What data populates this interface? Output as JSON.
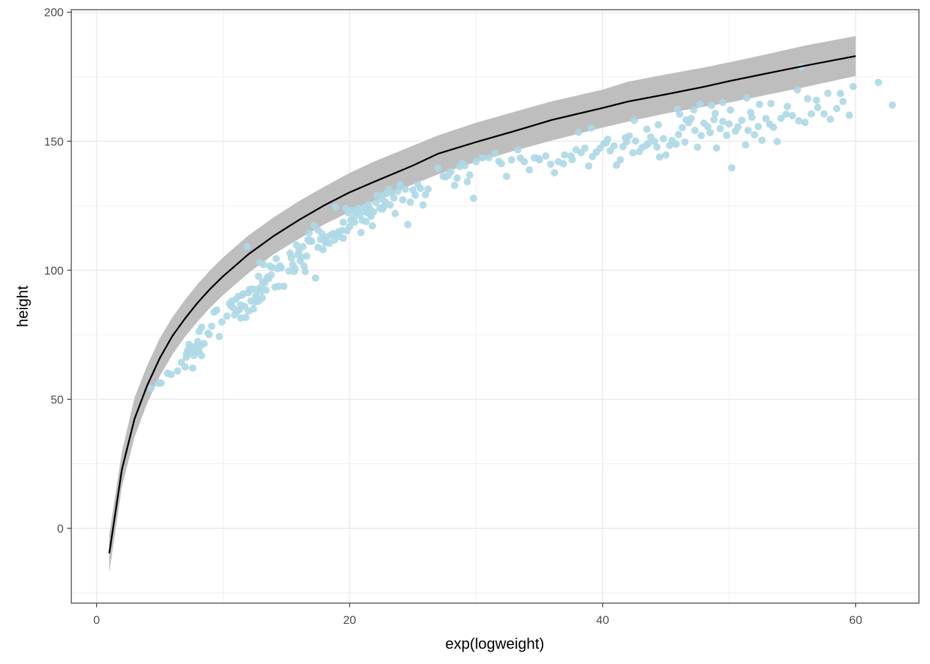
{
  "chart_data": {
    "type": "scatter",
    "title": "",
    "xlabel": "exp(logweight)",
    "ylabel": "height",
    "xlim": [
      -2,
      65
    ],
    "ylim": [
      -29,
      201
    ],
    "x_ticks": [
      0,
      20,
      40,
      60
    ],
    "x_tick_labels": [
      "0",
      "20",
      "40",
      "60"
    ],
    "y_ticks": [
      0,
      50,
      100,
      150,
      200
    ],
    "y_tick_labels": [
      "0",
      "50",
      "100",
      "150",
      "200"
    ],
    "grid": true,
    "legend": "none",
    "colors": {
      "points": "#add8e6",
      "line": "#000000",
      "ribbon": "#bebebe",
      "grid": "#ebebeb",
      "panel_border": "#333333"
    },
    "fit_line": {
      "x": [
        1,
        2,
        3,
        4,
        5,
        6,
        7,
        8,
        9,
        10,
        12,
        14,
        16,
        18,
        20,
        22,
        25,
        27,
        30,
        33,
        36,
        40,
        42,
        45,
        48,
        50,
        53,
        56,
        60
      ],
      "y": [
        -9.7,
        22.7,
        42.4,
        55.4,
        66.0,
        74.6,
        81.4,
        87.5,
        92.9,
        97.7,
        106.2,
        113.3,
        119.5,
        125.2,
        130.2,
        134.4,
        140.6,
        145.2,
        149.7,
        153.9,
        158.3,
        162.9,
        165.4,
        168.2,
        171.1,
        173.3,
        176.3,
        179.3,
        183.0
      ]
    },
    "ribbon": {
      "x": [
        1,
        2,
        3,
        4,
        5,
        6,
        7,
        8,
        9,
        10,
        12,
        14,
        16,
        18,
        20,
        22,
        25,
        27,
        30,
        33,
        36,
        40,
        42,
        45,
        48,
        50,
        53,
        56,
        60
      ],
      "lower": [
        -17.3,
        16.0,
        35.3,
        48.5,
        59.0,
        67.4,
        74.3,
        80.2,
        85.6,
        90.4,
        98.9,
        106.2,
        112.2,
        117.8,
        122.6,
        126.9,
        133.3,
        137.2,
        142.0,
        146.3,
        150.3,
        155.3,
        157.6,
        160.8,
        163.4,
        165.0,
        168.0,
        171.0,
        175.3
      ],
      "upper": [
        -2.4,
        29.6,
        50.6,
        63.1,
        73.7,
        81.9,
        88.6,
        94.7,
        100.1,
        105.0,
        113.5,
        120.5,
        126.8,
        132.4,
        137.7,
        142.3,
        148.3,
        152.3,
        157.2,
        161.4,
        165.5,
        170.0,
        173.1,
        175.9,
        178.6,
        180.6,
        183.8,
        187.1,
        190.8
      ]
    },
    "points": [
      [
        4.3,
        54.2
      ],
      [
        4.9,
        56.2
      ],
      [
        5.1,
        56.3
      ],
      [
        5.6,
        60.1
      ],
      [
        5.9,
        59.6
      ],
      [
        6.4,
        61
      ],
      [
        6.7,
        64.3
      ],
      [
        7,
        62.5
      ],
      [
        7.1,
        66.3
      ],
      [
        7.1,
        67.5
      ],
      [
        7.2,
        68.9
      ],
      [
        7.3,
        71.3
      ],
      [
        7.4,
        69.4
      ],
      [
        7.5,
        67.8
      ],
      [
        7.5,
        70.5
      ],
      [
        7.6,
        62.1
      ],
      [
        7.7,
        67
      ],
      [
        7.8,
        68.4
      ],
      [
        7.9,
        70.5
      ],
      [
        8,
        72.4
      ],
      [
        8.1,
        68.4
      ],
      [
        8.1,
        76.3
      ],
      [
        8.2,
        70.7
      ],
      [
        8.3,
        66.9
      ],
      [
        8.3,
        77.9
      ],
      [
        8.5,
        71.6
      ],
      [
        8.8,
        75.6
      ],
      [
        8.9,
        75.1
      ],
      [
        9.1,
        78.3
      ],
      [
        9.3,
        83.8
      ],
      [
        9.5,
        84.6
      ],
      [
        9.7,
        74.3
      ],
      [
        9.9,
        80
      ],
      [
        10.3,
        82.2
      ],
      [
        10.5,
        87.1
      ],
      [
        10.6,
        86.3
      ],
      [
        10.7,
        88.1
      ],
      [
        10.8,
        85.4
      ],
      [
        10.9,
        82.7
      ],
      [
        11,
        88.6
      ],
      [
        11.1,
        84
      ],
      [
        11.2,
        89.9
      ],
      [
        11.3,
        84.8
      ],
      [
        11.4,
        86.5
      ],
      [
        11.4,
        81.5
      ],
      [
        11.5,
        90.3
      ],
      [
        11.6,
        90.9
      ],
      [
        11.7,
        86
      ],
      [
        11.8,
        81.7
      ],
      [
        11.9,
        109.2
      ],
      [
        12,
        91.3
      ],
      [
        12,
        84.2
      ],
      [
        12.1,
        92.6
      ],
      [
        12.2,
        88.1
      ],
      [
        12.3,
        92.7
      ],
      [
        12.4,
        85
      ],
      [
        12.5,
        87.7
      ],
      [
        12.6,
        89.5
      ],
      [
        12.6,
        90.2
      ],
      [
        12.7,
        92.7
      ],
      [
        12.8,
        88
      ],
      [
        12.8,
        97.7
      ],
      [
        12.9,
        103
      ],
      [
        13,
        91.9
      ],
      [
        13,
        93.5
      ],
      [
        13.1,
        89.3
      ],
      [
        13.1,
        95.7
      ],
      [
        13.2,
        102.2
      ],
      [
        13.3,
        95.2
      ],
      [
        13.4,
        92.3
      ],
      [
        13.5,
        97.3
      ],
      [
        13.6,
        96.8
      ],
      [
        13.7,
        101.6
      ],
      [
        13.8,
        98.2
      ],
      [
        13.9,
        101
      ],
      [
        14.1,
        93.5
      ],
      [
        14.2,
        104.5
      ],
      [
        14.3,
        100.7
      ],
      [
        14.4,
        93.8
      ],
      [
        14.5,
        101.7
      ],
      [
        14.6,
        100.9
      ],
      [
        14.8,
        93.8
      ],
      [
        15.2,
        99.7
      ],
      [
        15.3,
        106.6
      ],
      [
        15.4,
        104.8
      ],
      [
        15.5,
        102.2
      ],
      [
        15.6,
        99.5
      ],
      [
        15.7,
        100.7
      ],
      [
        15.8,
        109.8
      ],
      [
        15.9,
        106
      ],
      [
        16,
        107.5
      ],
      [
        16.1,
        103.6
      ],
      [
        16.2,
        105.1
      ],
      [
        16.3,
        109.2
      ],
      [
        16.4,
        101.6
      ],
      [
        16.5,
        99.5
      ],
      [
        16.6,
        105.5
      ],
      [
        16.7,
        111.8
      ],
      [
        16.8,
        114.4
      ],
      [
        16.9,
        111.6
      ],
      [
        17,
        111.2
      ],
      [
        17.2,
        117.3
      ],
      [
        17.3,
        97
      ],
      [
        17.5,
        108.9
      ],
      [
        17.7,
        112
      ],
      [
        17.8,
        114.2
      ],
      [
        17.9,
        108
      ],
      [
        18,
        111.7
      ],
      [
        18.2,
        112.9
      ],
      [
        18.4,
        110.5
      ],
      [
        18.5,
        113.6
      ],
      [
        18.7,
        114.2
      ],
      [
        18.8,
        111.7
      ],
      [
        18.9,
        124.5
      ],
      [
        19,
        113.9
      ],
      [
        19.1,
        114.9
      ],
      [
        19.2,
        113.1
      ],
      [
        19.4,
        115.4
      ],
      [
        19.5,
        118.6
      ],
      [
        19.7,
        124.1
      ],
      [
        19.8,
        115.3
      ],
      [
        19.9,
        122.3
      ],
      [
        20,
        116.9
      ],
      [
        20.1,
        119.4
      ],
      [
        20.2,
        123.2
      ],
      [
        20.3,
        120.3
      ],
      [
        20.4,
        118.6
      ],
      [
        20.5,
        122.4
      ],
      [
        20.6,
        123.1
      ],
      [
        20.7,
        124.1
      ],
      [
        20.8,
        121.3
      ],
      [
        20.9,
        114.6
      ],
      [
        21,
        119.4
      ],
      [
        21.1,
        122.8
      ],
      [
        21.2,
        124.4
      ],
      [
        21.3,
        118.9
      ],
      [
        21.4,
        122.3
      ],
      [
        21.5,
        125.4
      ],
      [
        21.6,
        123.7
      ],
      [
        21.7,
        120.9
      ],
      [
        21.8,
        117.2
      ],
      [
        21.9,
        122.6
      ],
      [
        22.1,
        126.2
      ],
      [
        22.2,
        129.1
      ],
      [
        22.4,
        124
      ],
      [
        22.5,
        127.8
      ],
      [
        22.6,
        128.9
      ],
      [
        22.7,
        124.6
      ],
      [
        22.8,
        126.5
      ],
      [
        22.9,
        129.8
      ],
      [
        23.1,
        131.3
      ],
      [
        23.2,
        125.3
      ],
      [
        23.3,
        130
      ],
      [
        23.5,
        128
      ],
      [
        23.6,
        122
      ],
      [
        23.8,
        130.6
      ],
      [
        24,
        133.3
      ],
      [
        24.2,
        127.3
      ],
      [
        24.4,
        131.4
      ],
      [
        24.6,
        117.7
      ],
      [
        24.8,
        126.4
      ],
      [
        25,
        131.1
      ],
      [
        25.2,
        129.1
      ],
      [
        25.4,
        133.1
      ],
      [
        25.6,
        131.7
      ],
      [
        25.8,
        125.3
      ],
      [
        26,
        129.3
      ],
      [
        26.2,
        131.4
      ],
      [
        27,
        139.6
      ],
      [
        27.4,
        136.4
      ],
      [
        27.6,
        136.2
      ],
      [
        27.8,
        136.9
      ],
      [
        28,
        138.2
      ],
      [
        28.3,
        132.9
      ],
      [
        28.5,
        135.7
      ],
      [
        28.7,
        140.2
      ],
      [
        28.9,
        141.5
      ],
      [
        29.1,
        140.5
      ],
      [
        29.3,
        134.3
      ],
      [
        29.5,
        136.9
      ],
      [
        29.8,
        127.9
      ],
      [
        30,
        142.1
      ],
      [
        30.5,
        143.6
      ],
      [
        31,
        143.6
      ],
      [
        31.5,
        145.3
      ],
      [
        32,
        141.3
      ],
      [
        32.4,
        136.4
      ],
      [
        32.8,
        142.8
      ],
      [
        33.3,
        146.7
      ],
      [
        33.5,
        143.5
      ],
      [
        33.8,
        142.1
      ],
      [
        34.2,
        138.9
      ],
      [
        34.6,
        143.6
      ],
      [
        35,
        142.8
      ],
      [
        35.5,
        144.3
      ],
      [
        35.9,
        141.1
      ],
      [
        36.2,
        137.8
      ],
      [
        36.5,
        142.1
      ],
      [
        37,
        144.7
      ],
      [
        37.5,
        144.3
      ],
      [
        37.9,
        146.7
      ],
      [
        38.3,
        145.6
      ],
      [
        38.6,
        147.3
      ],
      [
        38.9,
        140.4
      ],
      [
        39.2,
        144.1
      ],
      [
        39.5,
        145.8
      ],
      [
        39.8,
        147.3
      ],
      [
        40.1,
        149.1
      ],
      [
        40.4,
        150.8
      ],
      [
        40.6,
        146.3
      ],
      [
        40.9,
        148.2
      ],
      [
        41.1,
        140.7
      ],
      [
        41.4,
        142.8
      ],
      [
        41.6,
        147.9
      ],
      [
        41.9,
        149.8
      ],
      [
        42.1,
        152.1
      ],
      [
        42.4,
        145.5
      ],
      [
        42.6,
        150.1
      ],
      [
        42.9,
        146
      ],
      [
        43.1,
        147.5
      ],
      [
        43.4,
        148.3
      ],
      [
        43.6,
        149.1
      ],
      [
        43.8,
        151.6
      ],
      [
        44.1,
        149.9
      ],
      [
        44.3,
        147.7
      ],
      [
        44.5,
        143.9
      ],
      [
        44.8,
        151
      ],
      [
        45,
        144.7
      ],
      [
        45.3,
        148.4
      ],
      [
        45.5,
        150.3
      ],
      [
        45.8,
        148.9
      ],
      [
        46,
        152.6
      ],
      [
        46.3,
        155.3
      ],
      [
        46.5,
        149.7
      ],
      [
        46.8,
        157.2
      ],
      [
        47,
        158.8
      ],
      [
        47.3,
        154.2
      ],
      [
        47.5,
        147.7
      ],
      [
        47.8,
        152.2
      ],
      [
        48,
        157
      ],
      [
        48.3,
        155.7
      ],
      [
        48.5,
        153.4
      ],
      [
        48.8,
        158.4
      ],
      [
        49,
        147.4
      ],
      [
        49.3,
        154.9
      ],
      [
        49.5,
        157.7
      ],
      [
        49.8,
        152.3
      ],
      [
        50,
        156.7
      ],
      [
        50.2,
        139.7
      ],
      [
        50.5,
        153.9
      ],
      [
        50.7,
        155.6
      ],
      [
        51,
        158.1
      ],
      [
        51.3,
        148.6
      ],
      [
        51.5,
        154.2
      ],
      [
        51.8,
        159.3
      ],
      [
        52,
        152.5
      ],
      [
        52.3,
        155.7
      ],
      [
        52.6,
        150.4
      ],
      [
        52.9,
        158.8
      ],
      [
        53.2,
        156.6
      ],
      [
        53.5,
        155.4
      ],
      [
        53.8,
        149.9
      ],
      [
        54.1,
        158.9
      ],
      [
        54.5,
        160.5
      ],
      [
        55,
        159.9
      ],
      [
        55.5,
        157.9
      ],
      [
        56,
        157.3
      ],
      [
        56.5,
        160.6
      ],
      [
        57,
        163.1
      ],
      [
        57.5,
        160.6
      ],
      [
        58,
        158.5
      ],
      [
        58.5,
        162.7
      ],
      [
        59,
        165.4
      ],
      [
        59.5,
        160.1
      ],
      [
        59.8,
        171.2
      ],
      [
        61.8,
        172.8
      ],
      [
        62.9,
        164
      ],
      [
        16.8,
        111.3
      ],
      [
        17.5,
        115.6
      ],
      [
        18.1,
        110.6
      ],
      [
        19.5,
        112.4
      ],
      [
        21.6,
        121.7
      ],
      [
        22.6,
        123.7
      ],
      [
        31.8,
        142.2
      ],
      [
        34.9,
        143.4
      ],
      [
        36.9,
        141.3
      ],
      [
        37.6,
        142.9
      ],
      [
        40.3,
        149.5
      ],
      [
        41.8,
        151.4
      ],
      [
        43.5,
        154.7
      ],
      [
        46.1,
        160.5
      ],
      [
        47.2,
        162.2
      ],
      [
        48.6,
        163.9
      ],
      [
        50.1,
        162.1
      ],
      [
        51.4,
        166.8
      ],
      [
        53.3,
        164.6
      ],
      [
        55.4,
        169.9
      ],
      [
        56.2,
        166.5
      ],
      [
        57.8,
        168.6
      ],
      [
        39.1,
        155.1
      ],
      [
        44.4,
        156.4
      ],
      [
        45.9,
        162.4
      ],
      [
        47.7,
        164.4
      ],
      [
        49.5,
        165.1
      ],
      [
        52.4,
        164.3
      ],
      [
        54.6,
        163.5
      ],
      [
        56.9,
        165.9
      ],
      [
        38.1,
        153.5
      ],
      [
        42.5,
        158.1
      ],
      [
        46.6,
        158.3
      ],
      [
        48.9,
        160.8
      ],
      [
        51.7,
        161.2
      ],
      [
        55.7,
        178.9
      ],
      [
        58.8,
        168.5
      ]
    ]
  }
}
